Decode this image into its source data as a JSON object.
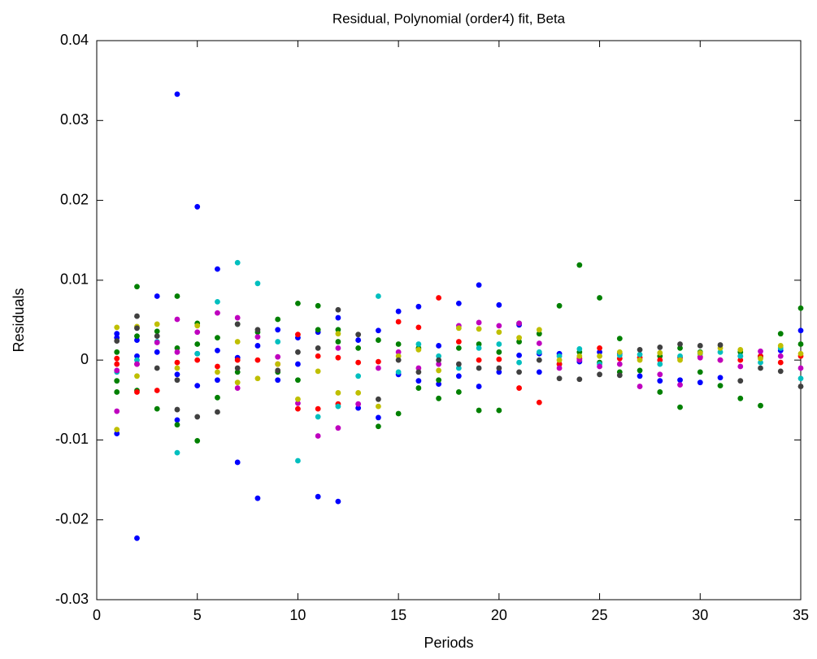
{
  "chart_data": {
    "type": "scatter",
    "title": "Residual, Polynomial (order4) fit, Beta",
    "x_label": "Periods",
    "y_label": "Residuals",
    "xlim": [
      0,
      35
    ],
    "xticks": [
      0,
      5,
      10,
      15,
      20,
      25,
      30,
      35
    ],
    "ylim": [
      -0.03,
      0.04
    ],
    "yticks": [
      -0.03,
      -0.02,
      -0.01,
      0,
      0.01,
      0.02,
      0.03,
      0.04
    ],
    "grid": false,
    "series": [
      {
        "color": "#0000ff",
        "x": [
          1,
          1,
          1,
          2,
          2,
          2,
          3,
          3,
          4,
          4,
          4,
          5,
          5,
          5,
          6,
          6,
          6,
          7,
          7,
          8,
          8,
          9,
          9,
          10,
          10,
          11,
          11,
          12,
          12,
          13,
          13,
          14,
          14,
          15,
          15,
          16,
          16,
          17,
          17,
          18,
          18,
          19,
          19,
          20,
          20,
          21,
          21,
          22,
          22,
          23,
          24,
          25,
          26,
          27,
          28,
          29,
          30,
          31,
          32,
          33,
          34,
          35
        ],
        "values": [
          0.0033,
          0.0028,
          -0.0092,
          -0.0223,
          0.0025,
          0.0005,
          0.008,
          0.001,
          0.0333,
          -0.0075,
          -0.0018,
          0.0192,
          0.0008,
          -0.0032,
          0.0114,
          0.0012,
          -0.0025,
          -0.0128,
          0.0003,
          -0.0173,
          0.0018,
          0.0038,
          -0.0025,
          0.0028,
          -0.0005,
          -0.0171,
          0.0035,
          -0.0177,
          0.0053,
          -0.006,
          0.0025,
          -0.0072,
          0.0037,
          0.0061,
          -0.0018,
          0.0067,
          -0.0026,
          -0.003,
          0.0018,
          0.0071,
          -0.002,
          0.0094,
          -0.0033,
          0.0069,
          -0.0015,
          0.0044,
          0.0006,
          0.0008,
          -0.0015,
          0.0008,
          -0.0002,
          0.001,
          0.0008,
          -0.002,
          -0.0026,
          -0.0025,
          -0.0028,
          -0.0022,
          0.0005,
          0.0004,
          0.0012,
          0.0037
        ]
      },
      {
        "color": "#008000",
        "x": [
          1,
          1,
          1,
          2,
          2,
          2,
          3,
          3,
          4,
          4,
          4,
          5,
          5,
          5,
          6,
          6,
          7,
          7,
          8,
          9,
          9,
          10,
          10,
          11,
          11,
          12,
          12,
          13,
          14,
          14,
          15,
          15,
          16,
          16,
          17,
          17,
          18,
          18,
          19,
          19,
          20,
          20,
          21,
          21,
          22,
          23,
          23,
          24,
          24,
          25,
          25,
          26,
          26,
          27,
          28,
          28,
          29,
          29,
          30,
          30,
          31,
          32,
          32,
          33,
          33,
          34,
          35,
          35
        ],
        "values": [
          0.001,
          -0.0026,
          -0.004,
          0.0092,
          0.003,
          -0.0038,
          0.0036,
          -0.0061,
          0.008,
          -0.0081,
          0.0015,
          0.0046,
          -0.0101,
          0.002,
          0.0028,
          -0.0047,
          0.0045,
          -0.0015,
          0.0035,
          0.0051,
          -0.0015,
          0.0071,
          -0.0025,
          0.0068,
          0.0038,
          0.0038,
          0.0023,
          0.0015,
          -0.0083,
          0.0025,
          -0.0067,
          0.002,
          -0.0035,
          0.0015,
          -0.0048,
          -0.0025,
          -0.004,
          0.0015,
          -0.0063,
          0.002,
          -0.0063,
          0.001,
          0.0046,
          0.0023,
          0.0033,
          0.0068,
          -0.0005,
          0.0119,
          0.001,
          0.0078,
          -0.0003,
          0.0027,
          -0.0015,
          -0.0013,
          -0.004,
          0.0005,
          -0.0059,
          0.0015,
          -0.0015,
          0.001,
          -0.0032,
          -0.0048,
          0.001,
          -0.0057,
          0.0005,
          0.0033,
          0.0065,
          0.002
        ]
      },
      {
        "color": "#ff0000",
        "x": [
          1,
          1,
          2,
          2,
          3,
          4,
          5,
          6,
          7,
          8,
          9,
          10,
          10,
          11,
          11,
          12,
          12,
          13,
          14,
          15,
          16,
          17,
          18,
          19,
          20,
          21,
          22,
          23,
          24,
          25,
          26,
          27,
          28,
          29,
          30,
          31,
          32,
          33,
          34,
          35
        ],
        "values": [
          0.0002,
          -0.0005,
          -0.004,
          -0.0005,
          -0.0038,
          -0.0003,
          0,
          -0.0008,
          0,
          0,
          -0.0005,
          0.0032,
          -0.0061,
          -0.0061,
          0.0005,
          0.0003,
          -0.0055,
          -0.0003,
          -0.0002,
          0.0048,
          0.0041,
          0.0078,
          0.0023,
          0,
          0.0001,
          -0.0035,
          -0.0053,
          -0.0005,
          0.0002,
          0.0015,
          0.0002,
          0.0003,
          0,
          0.0003,
          0.0004,
          0,
          0,
          0.0005,
          -0.0003,
          0.0005
        ]
      },
      {
        "color": "#00bfbf",
        "x": [
          1,
          2,
          3,
          4,
          5,
          6,
          7,
          8,
          9,
          10,
          11,
          12,
          13,
          14,
          15,
          16,
          17,
          18,
          19,
          20,
          21,
          22,
          23,
          24,
          25,
          26,
          27,
          28,
          29,
          30,
          31,
          32,
          33,
          34,
          35
        ],
        "values": [
          -0.0015,
          0,
          0.0023,
          -0.0116,
          0.0008,
          0.0073,
          0.0122,
          0.0096,
          0.0023,
          -0.0126,
          -0.0071,
          -0.0058,
          -0.002,
          0.008,
          -0.0015,
          0.002,
          0.0005,
          -0.001,
          0.0015,
          0.002,
          -0.0003,
          0.001,
          0.0005,
          0.0014,
          -0.0005,
          0.0006,
          0.0007,
          -0.0005,
          0.0005,
          0.0008,
          0.001,
          0.0005,
          -0.0003,
          0.0015,
          -0.0023
        ]
      },
      {
        "color": "#bf00bf",
        "x": [
          1,
          1,
          2,
          3,
          4,
          4,
          5,
          6,
          7,
          7,
          8,
          9,
          10,
          11,
          12,
          12,
          13,
          14,
          15,
          16,
          17,
          18,
          19,
          20,
          21,
          22,
          23,
          24,
          25,
          26,
          27,
          28,
          29,
          30,
          31,
          32,
          33,
          34,
          35
        ],
        "values": [
          -0.0064,
          -0.0013,
          -0.0005,
          0.0022,
          0.0051,
          0.001,
          0.0035,
          0.0059,
          0.0053,
          -0.0035,
          0.0029,
          0.0004,
          -0.0054,
          -0.0095,
          -0.0085,
          0.0015,
          -0.0055,
          -0.001,
          0.001,
          -0.001,
          -0.0005,
          0.0043,
          0.0047,
          0.0043,
          0.0046,
          0.0021,
          -0.001,
          0,
          -0.0008,
          -0.0005,
          -0.0033,
          -0.0018,
          -0.0031,
          0.0003,
          0,
          -0.0008,
          0.0011,
          0.0005,
          -0.001
        ]
      },
      {
        "color": "#bfbf00",
        "x": [
          1,
          1,
          2,
          2,
          3,
          4,
          5,
          6,
          7,
          7,
          8,
          9,
          10,
          11,
          12,
          12,
          13,
          14,
          15,
          16,
          17,
          18,
          19,
          20,
          21,
          22,
          23,
          24,
          25,
          26,
          27,
          28,
          29,
          30,
          31,
          32,
          33,
          34,
          35
        ],
        "values": [
          0.0041,
          -0.0087,
          0.0042,
          -0.002,
          0.0045,
          -0.001,
          0.0043,
          -0.0015,
          0.0023,
          -0.0028,
          -0.0023,
          -0.0005,
          -0.0049,
          -0.0014,
          -0.0041,
          0.0033,
          -0.0041,
          -0.0058,
          0.0005,
          0.0013,
          -0.0013,
          0.004,
          0.0039,
          0.0035,
          0.0028,
          0.0038,
          0,
          0.0005,
          0.0005,
          0.001,
          0,
          0.0009,
          0,
          0.0009,
          0.0015,
          0.0013,
          0.0002,
          0.0018,
          0.0008
        ]
      },
      {
        "color": "#404040",
        "x": [
          1,
          2,
          2,
          3,
          3,
          4,
          4,
          5,
          6,
          7,
          7,
          8,
          9,
          10,
          11,
          12,
          13,
          14,
          15,
          16,
          17,
          18,
          19,
          20,
          21,
          22,
          23,
          24,
          25,
          26,
          27,
          28,
          29,
          30,
          31,
          32,
          33,
          34,
          35
        ],
        "values": [
          0.0024,
          0.0055,
          0.004,
          -0.001,
          0.003,
          -0.0062,
          -0.0025,
          -0.0071,
          -0.0065,
          0.0045,
          -0.001,
          0.0038,
          -0.0013,
          0.001,
          0.0015,
          0.0063,
          0.0032,
          -0.0049,
          0,
          -0.0015,
          0,
          -0.0005,
          -0.001,
          -0.001,
          -0.0015,
          0,
          -0.0023,
          -0.0024,
          -0.0018,
          -0.0019,
          0.0013,
          0.0016,
          0.002,
          0.0018,
          0.0019,
          -0.0026,
          -0.001,
          -0.0014,
          -0.0033
        ]
      }
    ]
  }
}
